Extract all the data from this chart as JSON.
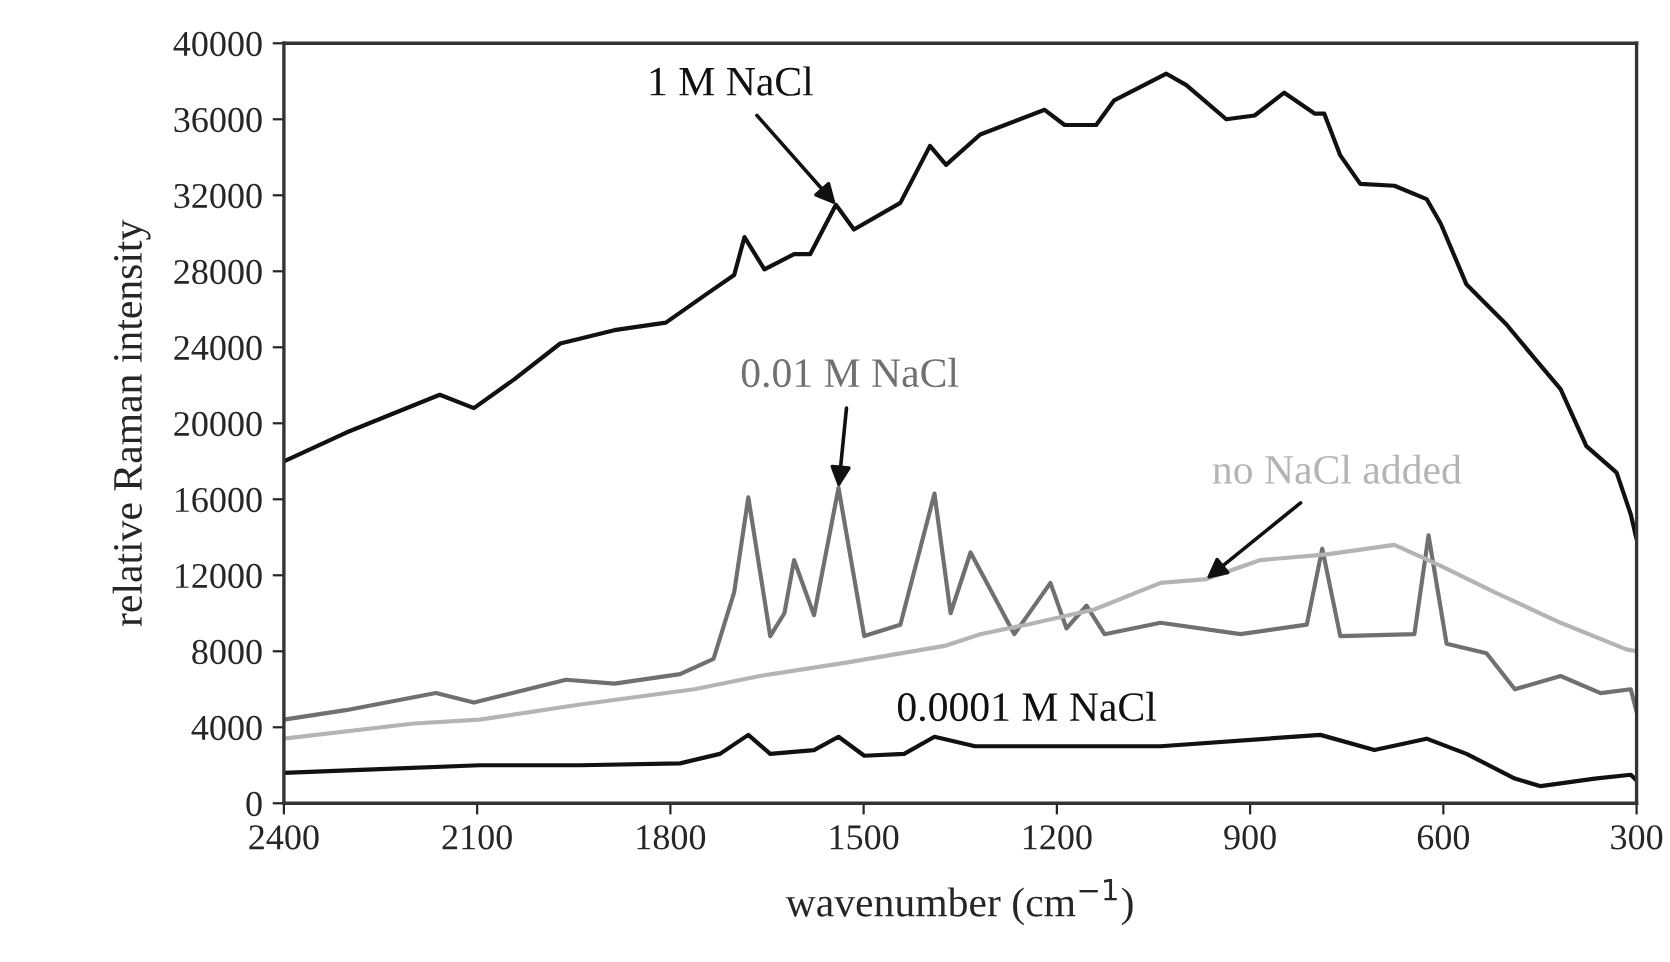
{
  "chart_data": {
    "type": "line",
    "xlabel": "wavenumber (cm$^{−1}$)",
    "ylabel": "relative Raman intensity",
    "xlim": [
      2400,
      300
    ],
    "xticks": [
      2400,
      2100,
      1800,
      1500,
      1200,
      900,
      600,
      300
    ],
    "ylim": [
      0,
      40000
    ],
    "yticks": [
      0,
      4000,
      8000,
      12000,
      16000,
      20000,
      24000,
      28000,
      32000,
      36000,
      40000
    ],
    "grid": false,
    "legend": false,
    "marker": "none",
    "line_style": "solid",
    "series": [
      {
        "name": "1 M NaCl",
        "color": "#111111",
        "x": [
          2400,
          2304,
          2158,
          2105,
          2043,
          1971,
          1887,
          1807,
          1744,
          1701,
          1685,
          1654,
          1608,
          1583,
          1543,
          1515,
          1443,
          1397,
          1372,
          1319,
          1219,
          1188,
          1139,
          1111,
          1030,
          999,
          937,
          893,
          847,
          800,
          785,
          760,
          729,
          676,
          626,
          604,
          564,
          502,
          458,
          418,
          378,
          331,
          309,
          300
        ],
        "values": [
          18000,
          19500,
          21500,
          20800,
          22300,
          24200,
          24900,
          25300,
          26800,
          27800,
          29800,
          28100,
          28900,
          28900,
          31500,
          30200,
          31600,
          34600,
          33600,
          35200,
          36500,
          35700,
          35700,
          37000,
          38400,
          37800,
          36000,
          36200,
          37400,
          36300,
          36300,
          34100,
          32600,
          32500,
          31800,
          30500,
          27300,
          25200,
          23400,
          21800,
          18800,
          17400,
          15200,
          13900
        ]
      },
      {
        "name": "0.01 M NaCl",
        "color": "#707070",
        "x": [
          2400,
          2304,
          2164,
          2105,
          1962,
          1887,
          1785,
          1733,
          1701,
          1679,
          1645,
          1623,
          1608,
          1577,
          1539,
          1499,
          1443,
          1390,
          1365,
          1334,
          1266,
          1210,
          1185,
          1154,
          1126,
          1039,
          915,
          812,
          788,
          760,
          645,
          623,
          595,
          533,
          489,
          418,
          356,
          309,
          300
        ],
        "values": [
          4400,
          4900,
          5800,
          5300,
          6500,
          6300,
          6800,
          7600,
          11100,
          16100,
          8800,
          10000,
          12800,
          9900,
          16600,
          8800,
          9400,
          16300,
          10000,
          13200,
          8900,
          11600,
          9200,
          10400,
          8900,
          9500,
          8900,
          9400,
          13400,
          8800,
          8900,
          14100,
          8400,
          7900,
          6000,
          6700,
          5800,
          6000,
          4800
        ]
      },
      {
        "name": "no NaCl added",
        "color": "#b4b4b4",
        "x": [
          2400,
          2198,
          2096,
          1940,
          1763,
          1661,
          1527,
          1372,
          1319,
          1247,
          1142,
          1039,
          968,
          884,
          781,
          676,
          604,
          520,
          418,
          316,
          300
        ],
        "values": [
          3400,
          4200,
          4400,
          5200,
          6000,
          6700,
          7400,
          8300,
          8900,
          9400,
          10200,
          11600,
          11800,
          12800,
          13100,
          13600,
          12500,
          11100,
          9500,
          8100,
          8000
        ]
      },
      {
        "name": "0.0001 M NaCl",
        "color": "#111111",
        "x": [
          2400,
          2251,
          2096,
          1940,
          1785,
          1723,
          1679,
          1645,
          1577,
          1539,
          1499,
          1437,
          1390,
          1327,
          1247,
          1039,
          791,
          707,
          626,
          564,
          489,
          449,
          365,
          309,
          300
        ],
        "values": [
          1600,
          1800,
          2000,
          2000,
          2100,
          2600,
          3600,
          2600,
          2800,
          3500,
          2500,
          2600,
          3500,
          3000,
          3000,
          3000,
          3600,
          2800,
          3400,
          2600,
          1300,
          900,
          1300,
          1500,
          1200
        ]
      }
    ]
  }
}
